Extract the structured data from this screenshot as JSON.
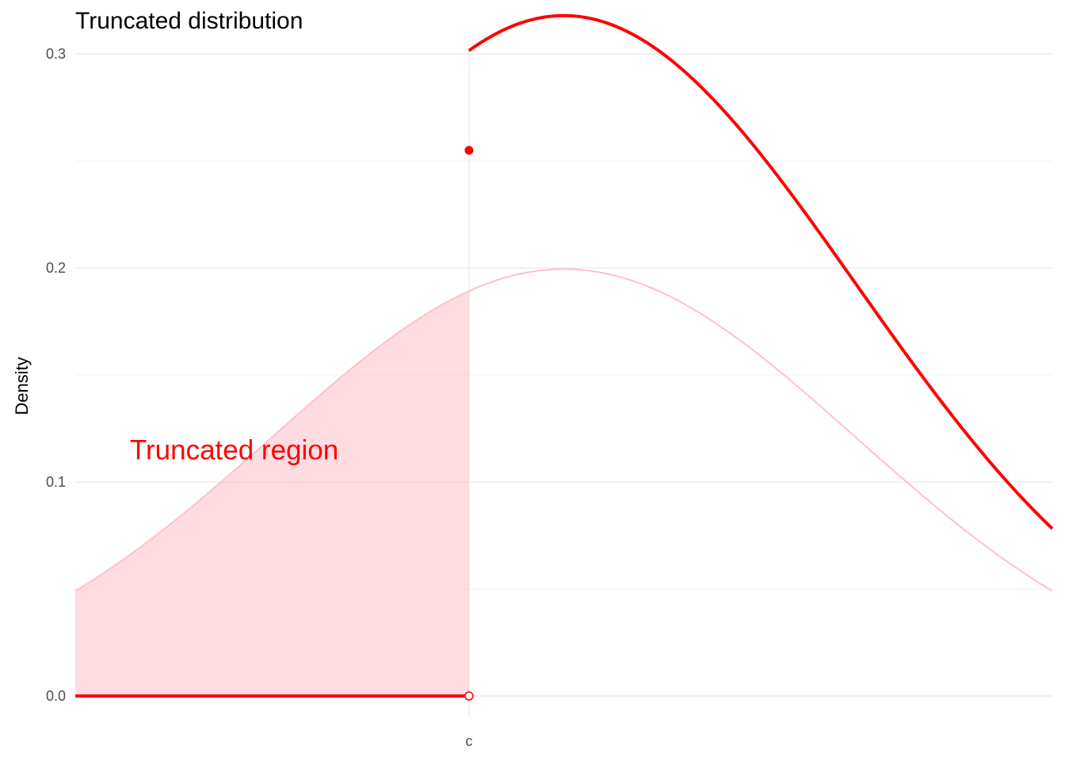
{
  "chart_data": {
    "type": "line",
    "title": "Truncated distribution",
    "xlabel": "",
    "ylabel": "Density",
    "xlim": [
      -3.35,
      3.35
    ],
    "ylim": [
      -0.01,
      0.303
    ],
    "x_tick_labels": [
      {
        "x": -0.65,
        "label": "c"
      }
    ],
    "y_ticks": [
      0.0,
      0.1,
      0.2,
      0.3
    ],
    "y_tick_labels": [
      "0.0",
      "0.1",
      "0.2",
      "0.3"
    ],
    "grid": true,
    "distribution": {
      "mean": 0,
      "sd": 2,
      "truncation_point": -0.65,
      "x_range": [
        -3.35,
        3.35
      ]
    },
    "series": [
      {
        "role": "parent-density",
        "color": "#FFC0CB"
      },
      {
        "role": "truncated-density",
        "color": "#FF0000"
      }
    ],
    "shaded_region": {
      "from": -3.35,
      "to": -0.65,
      "color": "#FFC0CB"
    },
    "points": [
      {
        "x": -0.65,
        "y": 0.255,
        "style": "filled"
      },
      {
        "x": -0.65,
        "y": 0.0,
        "style": "open"
      }
    ],
    "annotations": [
      {
        "text": "Truncated region",
        "x": -2.26,
        "y": 0.115,
        "color": "#FF0000"
      }
    ]
  }
}
